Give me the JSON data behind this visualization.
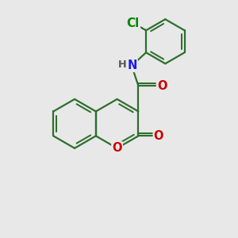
{
  "bg": "#e8e8e8",
  "bond_color": "#2d6e2d",
  "bw": 1.6,
  "atom_colors": {
    "O": "#cc0000",
    "N": "#1a1aee",
    "Cl": "#008800",
    "C": "#2d6e2d",
    "H": "#555555"
  },
  "fs": 10.5
}
